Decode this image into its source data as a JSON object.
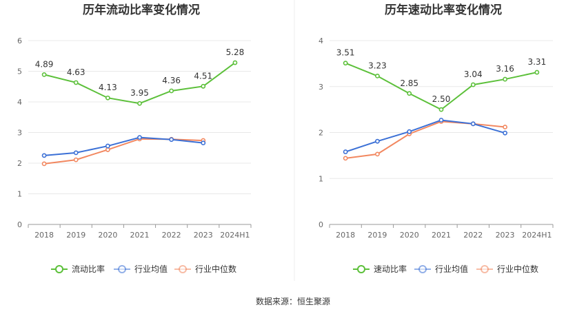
{
  "source_text": "数据来源：恒生聚源",
  "colors": {
    "main": "#5cc03a",
    "avg": "#3b70d6",
    "median": "#f2875f",
    "grid": "#e8e8e8",
    "axis": "#999999"
  },
  "chart_data": [
    {
      "type": "line",
      "title": "历年流动比率变化情况",
      "categories": [
        "2018",
        "2019",
        "2020",
        "2021",
        "2022",
        "2023",
        "2024H1"
      ],
      "ylim": [
        0,
        6
      ],
      "yticks": [
        0,
        1,
        2,
        3,
        4,
        5,
        6
      ],
      "legend": "bottom",
      "grid": true,
      "series": [
        {
          "name": "流动比率",
          "values": [
            4.89,
            4.63,
            4.13,
            3.95,
            4.36,
            4.51,
            5.28
          ],
          "labels": [
            "4.89",
            "4.63",
            "4.13",
            "3.95",
            "4.36",
            "4.51",
            "5.28"
          ]
        },
        {
          "name": "行业均值",
          "values": [
            2.25,
            2.34,
            2.56,
            2.84,
            2.77,
            2.66,
            null
          ]
        },
        {
          "name": "行业中位数",
          "values": [
            1.98,
            2.11,
            2.44,
            2.79,
            2.78,
            2.74,
            null
          ]
        }
      ]
    },
    {
      "type": "line",
      "title": "历年速动比率变化情况",
      "categories": [
        "2018",
        "2019",
        "2020",
        "2021",
        "2022",
        "2023",
        "2024H1"
      ],
      "ylim": [
        0,
        4
      ],
      "yticks": [
        0,
        1,
        2,
        3,
        4
      ],
      "legend": "bottom",
      "grid": true,
      "series": [
        {
          "name": "速动比率",
          "values": [
            3.51,
            3.23,
            2.85,
            2.5,
            3.04,
            3.16,
            3.31
          ],
          "labels": [
            "3.51",
            "3.23",
            "2.85",
            "2.50",
            "3.04",
            "3.16",
            "3.31"
          ]
        },
        {
          "name": "行业均值",
          "values": [
            1.58,
            1.81,
            2.02,
            2.27,
            2.19,
            1.99,
            null
          ]
        },
        {
          "name": "行业中位数",
          "values": [
            1.44,
            1.53,
            1.97,
            2.24,
            2.19,
            2.12,
            null
          ]
        }
      ]
    }
  ]
}
